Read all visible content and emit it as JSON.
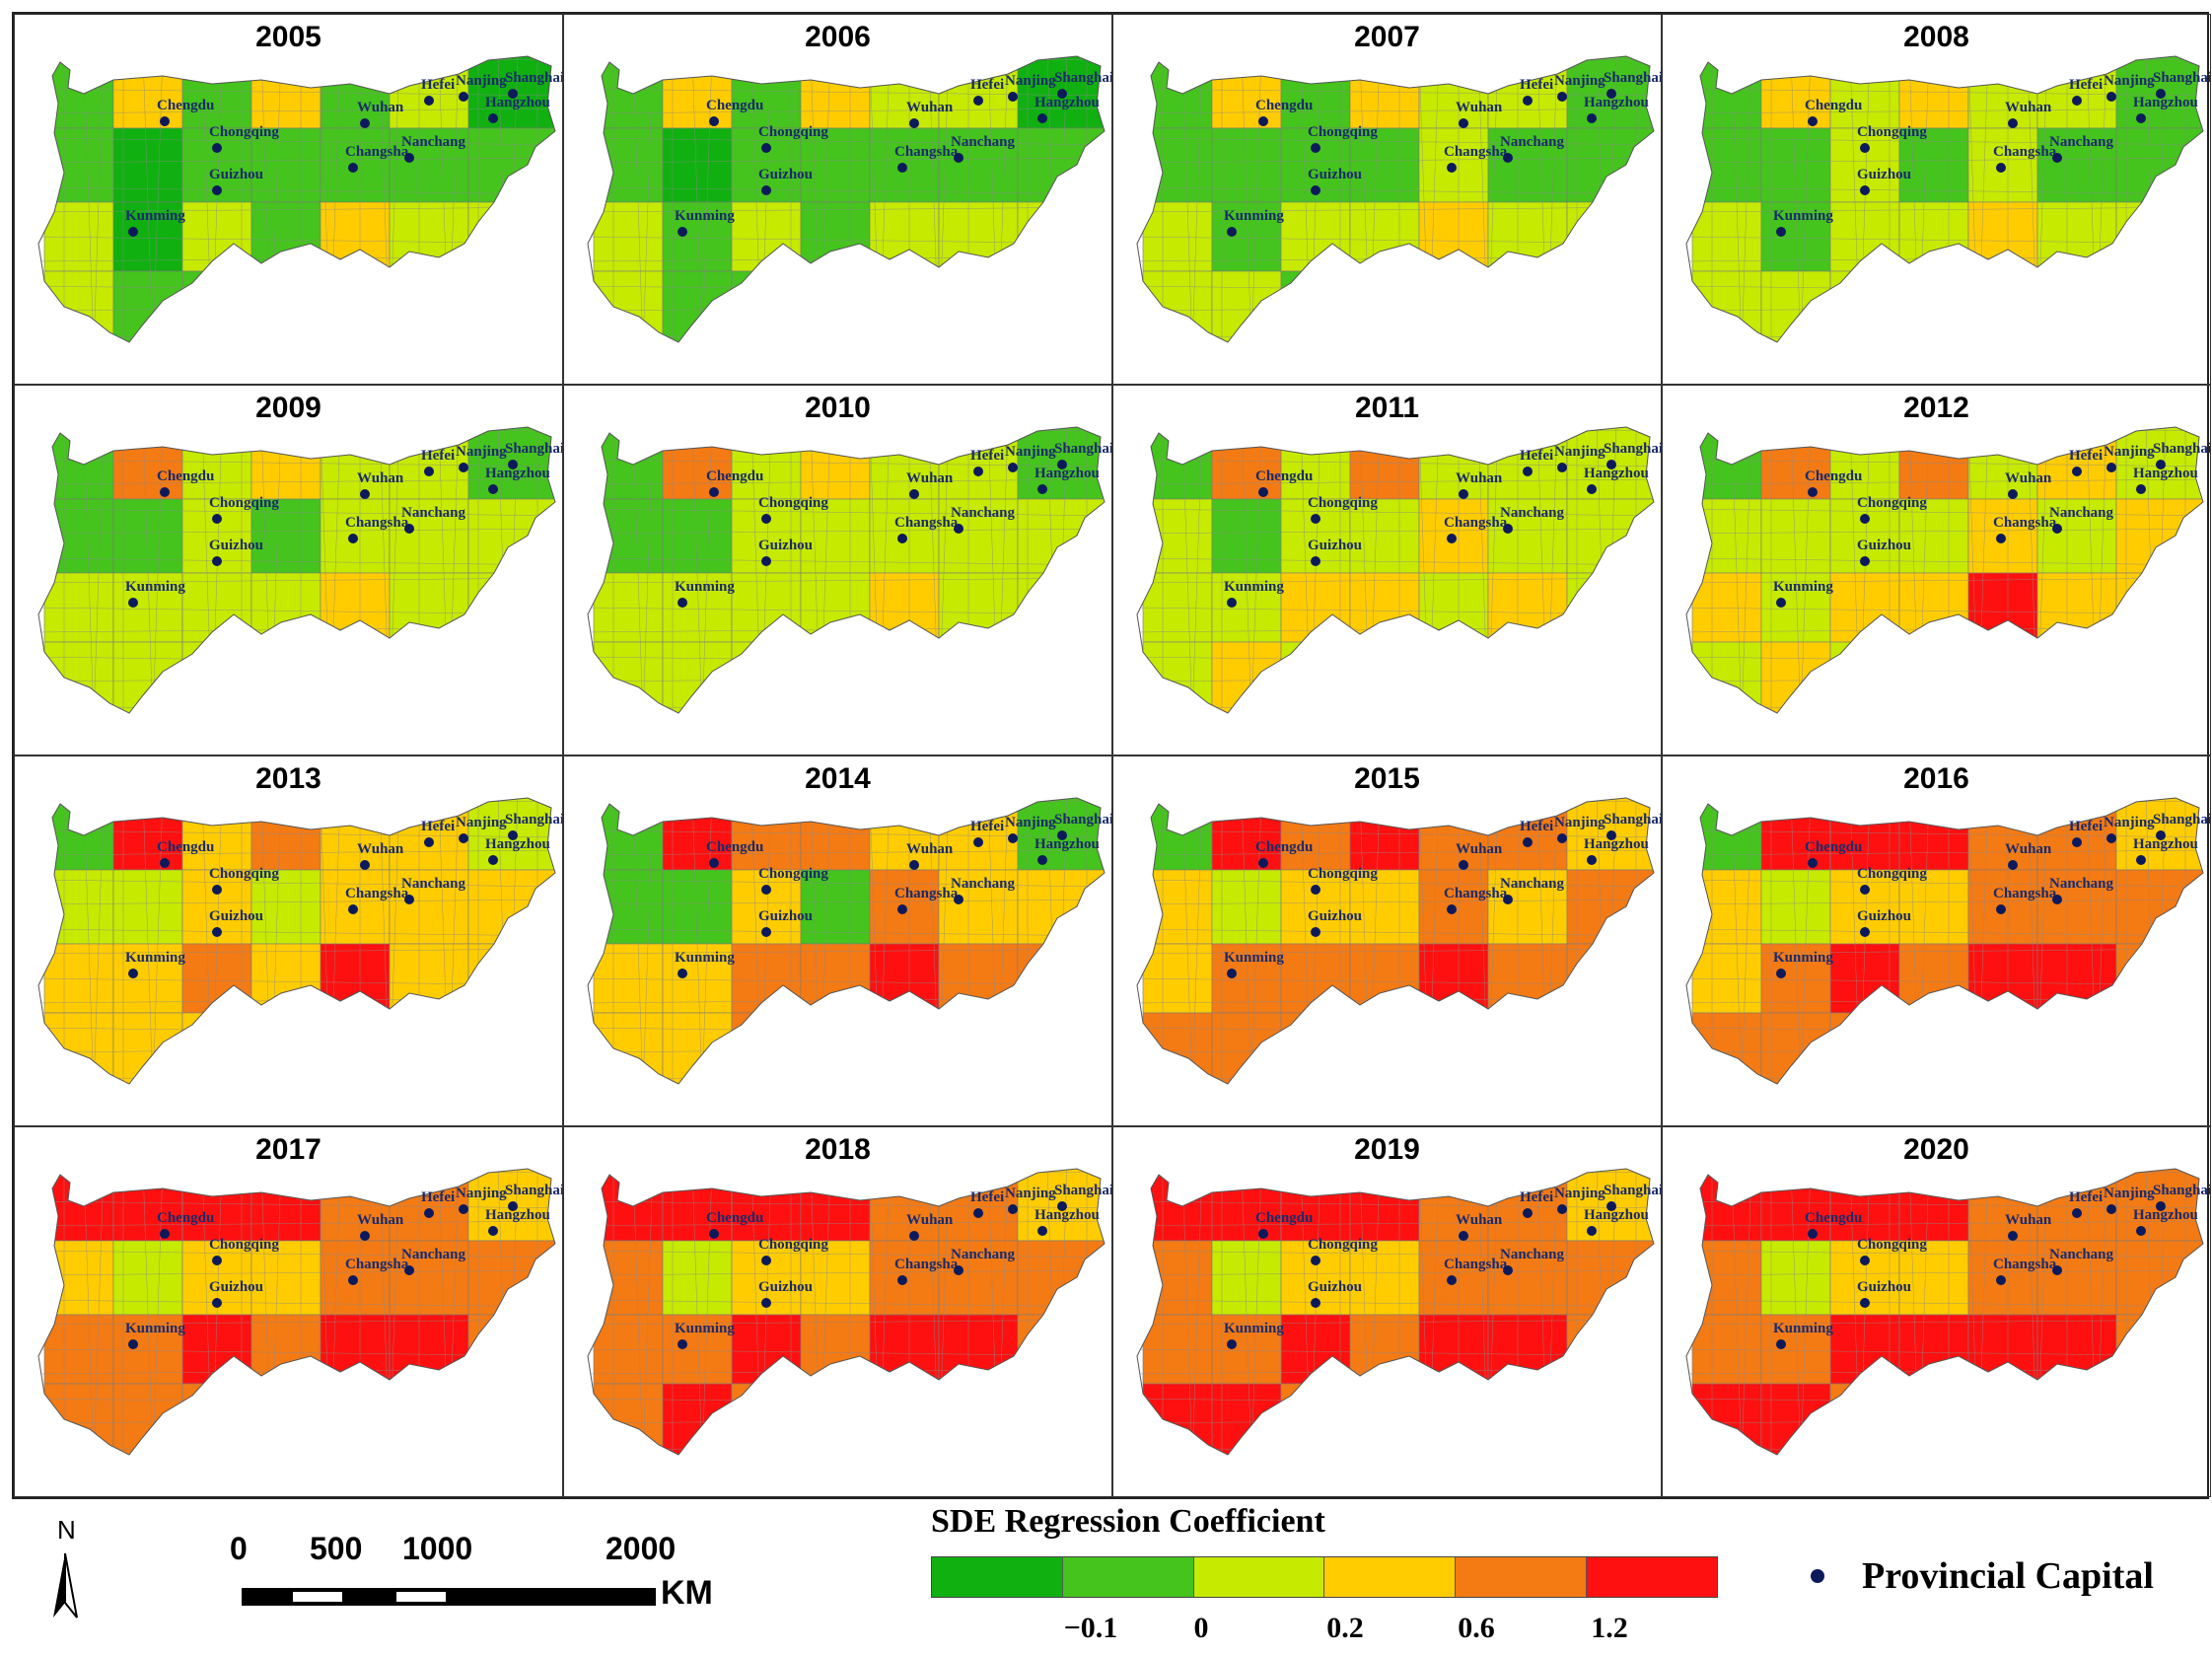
{
  "title": "SDE Regression Coefficient",
  "colors": {
    "legend": [
      "#10b010",
      "#44c41c",
      "#c6ea00",
      "#ffcc00",
      "#f47a14",
      "#ff1010"
    ],
    "capital": "#0c1a5c"
  },
  "legend": {
    "title": "SDE Regression Coefficient",
    "ticks": [
      "−0.1",
      "0",
      "0.2",
      "0.6",
      "1.2"
    ]
  },
  "capital_legend_label": "Provincial Capital",
  "north_label": "N",
  "scale": {
    "labels": [
      "0",
      "500",
      "1000",
      "2000"
    ],
    "unit": "KM"
  },
  "capitals": [
    "Chengdu",
    "Chongqing",
    "Kunming",
    "Guizhou",
    "Wuhan",
    "Changsha",
    "Nanchang",
    "Hefei",
    "Nanjing",
    "Shanghai",
    "Hangzhou"
  ],
  "panels": [
    {
      "year": "2005",
      "regions": [
        1,
        3,
        1,
        3,
        1,
        2,
        0,
        1,
        0,
        1,
        1,
        1,
        1,
        1,
        2,
        0,
        2,
        1,
        3,
        2,
        2,
        2,
        1,
        1,
        0,
        1,
        3,
        2
      ]
    },
    {
      "year": "2006",
      "regions": [
        1,
        3,
        1,
        3,
        2,
        2,
        0,
        1,
        0,
        1,
        1,
        1,
        1,
        1,
        2,
        1,
        2,
        1,
        2,
        2,
        2,
        2,
        1,
        1,
        0,
        1,
        3,
        2
      ]
    },
    {
      "year": "2007",
      "regions": [
        1,
        3,
        1,
        3,
        2,
        2,
        1,
        1,
        1,
        1,
        1,
        2,
        1,
        1,
        2,
        1,
        2,
        2,
        3,
        2,
        2,
        2,
        2,
        1,
        0,
        1,
        3,
        2
      ]
    },
    {
      "year": "2008",
      "regions": [
        1,
        3,
        2,
        3,
        2,
        2,
        1,
        1,
        1,
        2,
        1,
        2,
        1,
        1,
        2,
        1,
        2,
        2,
        3,
        2,
        2,
        2,
        2,
        2,
        1,
        1,
        3,
        2
      ]
    },
    {
      "year": "2009",
      "regions": [
        1,
        4,
        2,
        3,
        2,
        2,
        1,
        1,
        1,
        2,
        1,
        2,
        2,
        2,
        2,
        2,
        2,
        2,
        3,
        2,
        2,
        2,
        2,
        2,
        1,
        2,
        3,
        2
      ]
    },
    {
      "year": "2010",
      "regions": [
        1,
        4,
        2,
        3,
        2,
        2,
        1,
        1,
        1,
        2,
        2,
        2,
        2,
        2,
        2,
        2,
        2,
        2,
        3,
        2,
        2,
        2,
        2,
        2,
        1,
        2,
        3,
        2
      ]
    },
    {
      "year": "2011",
      "regions": [
        1,
        4,
        2,
        4,
        2,
        2,
        2,
        2,
        1,
        2,
        2,
        3,
        2,
        2,
        2,
        2,
        3,
        3,
        2,
        3,
        2,
        2,
        3,
        2,
        1,
        2,
        3,
        2
      ]
    },
    {
      "year": "2012",
      "regions": [
        1,
        4,
        2,
        4,
        2,
        3,
        2,
        2,
        2,
        2,
        2,
        3,
        2,
        3,
        3,
        2,
        3,
        3,
        5,
        3,
        3,
        2,
        3,
        2,
        2,
        2,
        3,
        2
      ]
    },
    {
      "year": "2013",
      "regions": [
        1,
        5,
        3,
        4,
        3,
        3,
        2,
        2,
        2,
        3,
        2,
        3,
        3,
        3,
        3,
        3,
        4,
        3,
        5,
        3,
        3,
        3,
        3,
        3,
        2,
        2,
        4,
        3
      ]
    },
    {
      "year": "2014",
      "regions": [
        1,
        5,
        4,
        4,
        3,
        3,
        1,
        1,
        1,
        3,
        1,
        4,
        3,
        3,
        3,
        3,
        4,
        4,
        5,
        4,
        4,
        3,
        3,
        4,
        2,
        2,
        4,
        1
      ]
    },
    {
      "year": "2015",
      "regions": [
        1,
        5,
        4,
        5,
        4,
        4,
        3,
        3,
        2,
        3,
        3,
        4,
        3,
        4,
        3,
        4,
        4,
        4,
        5,
        4,
        4,
        4,
        4,
        4,
        3,
        3,
        4,
        2
      ]
    },
    {
      "year": "2016",
      "regions": [
        1,
        5,
        5,
        5,
        4,
        4,
        3,
        3,
        2,
        3,
        3,
        4,
        4,
        4,
        3,
        4,
        5,
        4,
        5,
        5,
        4,
        4,
        4,
        4,
        3,
        4,
        4,
        3
      ]
    },
    {
      "year": "2017",
      "regions": [
        5,
        5,
        5,
        5,
        4,
        4,
        3,
        3,
        2,
        3,
        3,
        4,
        4,
        4,
        4,
        4,
        5,
        4,
        5,
        5,
        4,
        4,
        4,
        4,
        3,
        4,
        4,
        3
      ]
    },
    {
      "year": "2018",
      "regions": [
        5,
        5,
        5,
        5,
        4,
        4,
        3,
        4,
        2,
        3,
        3,
        4,
        4,
        4,
        4,
        4,
        5,
        4,
        5,
        5,
        4,
        4,
        5,
        4,
        3,
        4,
        4,
        3
      ]
    },
    {
      "year": "2019",
      "regions": [
        5,
        5,
        5,
        5,
        4,
        4,
        3,
        4,
        2,
        3,
        3,
        4,
        4,
        4,
        4,
        4,
        5,
        4,
        5,
        5,
        4,
        5,
        5,
        4,
        4,
        4,
        5,
        3
      ]
    },
    {
      "year": "2020",
      "regions": [
        5,
        5,
        5,
        5,
        4,
        4,
        4,
        4,
        2,
        3,
        3,
        4,
        4,
        4,
        4,
        4,
        5,
        5,
        5,
        5,
        4,
        5,
        5,
        4,
        4,
        5,
        5,
        4
      ]
    }
  ]
}
